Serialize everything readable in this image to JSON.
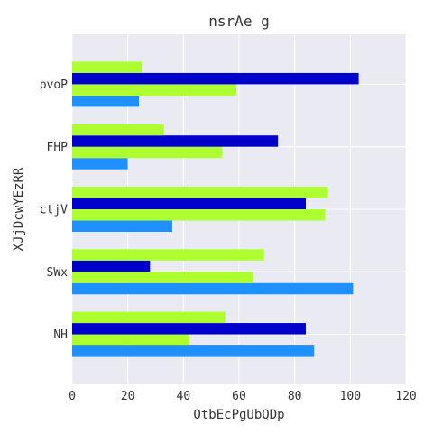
{
  "chart_data": {
    "type": "bar",
    "orientation": "horizontal",
    "title": "nsrAe g",
    "xlabel": "OtbEcPgUbQDp",
    "ylabel": "XJjDcwYEzRR",
    "xlim": [
      0,
      120
    ],
    "xticks": [
      0,
      20,
      40,
      60,
      80,
      100,
      120
    ],
    "categories": [
      "NH",
      "SWx",
      "ctjV",
      "FHP",
      "pvoP"
    ],
    "series": [
      {
        "color": "#1e90ff",
        "values": [
          87,
          101,
          36,
          20,
          24
        ]
      },
      {
        "color": "#adff2f",
        "values": [
          42,
          65,
          91,
          54,
          59
        ]
      },
      {
        "color": "#0000cd",
        "values": [
          84,
          28,
          84,
          74,
          103
        ]
      },
      {
        "color": "#adff2f",
        "values": [
          55,
          69,
          92,
          33,
          25
        ]
      }
    ],
    "grid": true,
    "background": "#eaeaf2",
    "legend": "none"
  }
}
